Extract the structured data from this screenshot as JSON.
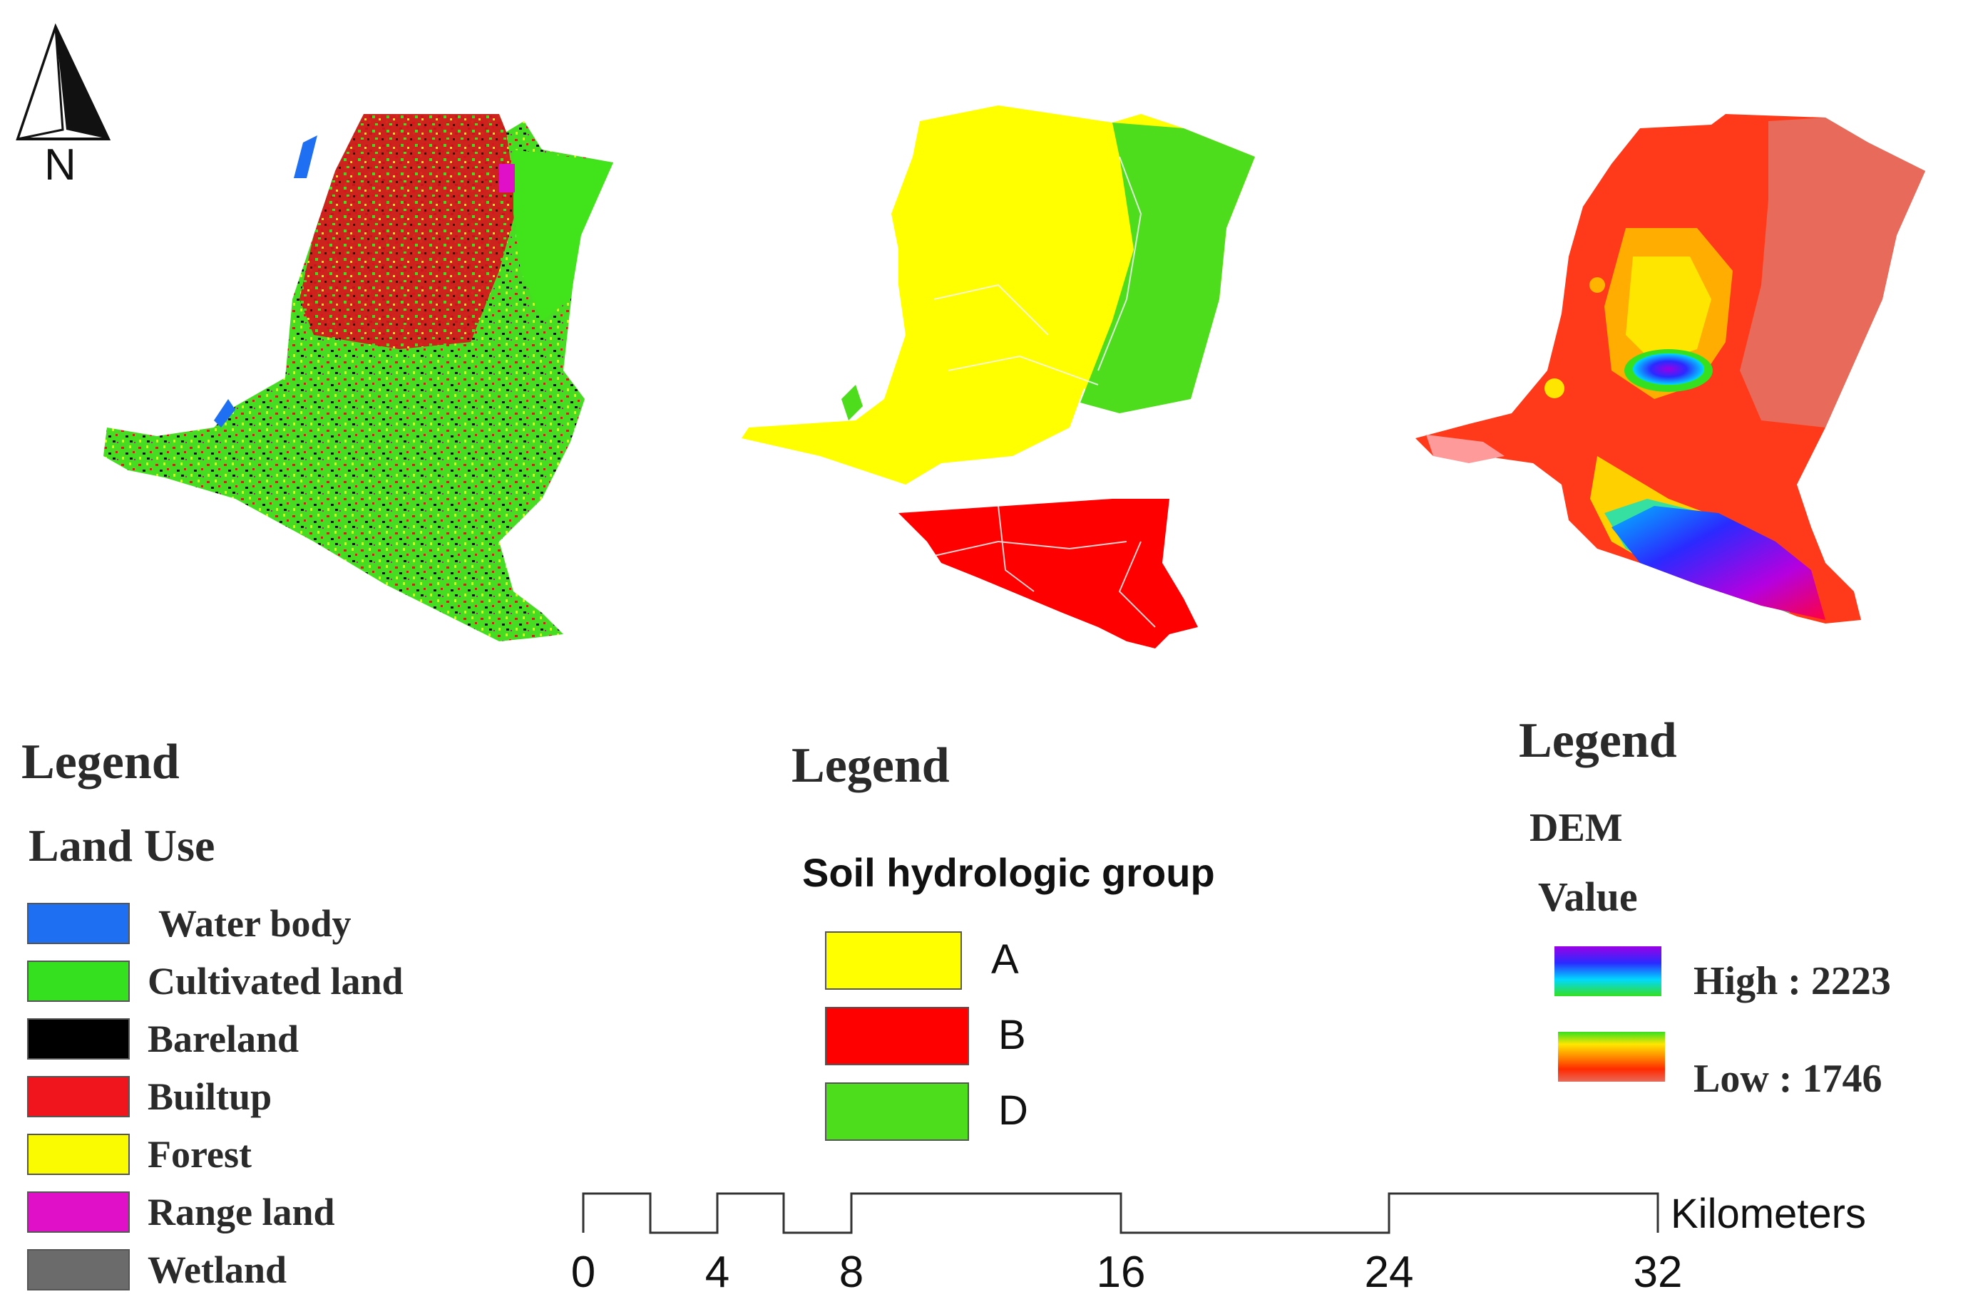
{
  "north_arrow": {
    "label": "N"
  },
  "land_use": {
    "legend_title": "Legend",
    "subtitle": "Land Use",
    "classes": [
      {
        "name": "Water body",
        "color": "#1f6ff2"
      },
      {
        "name": "Cultivated land",
        "color": "#35e01f"
      },
      {
        "name": "Bareland",
        "color": "#000000"
      },
      {
        "name": "Builtup",
        "color": "#f0141c"
      },
      {
        "name": "Forest",
        "color": "#fbfb00"
      },
      {
        "name": "Range land",
        "color": "#e010c8"
      },
      {
        "name": "Wetland",
        "color": "#6b6b6b"
      }
    ]
  },
  "soil": {
    "legend_title": "Legend",
    "subtitle": "Soil hydrologic group",
    "classes": [
      {
        "name": "A",
        "color": "#ffff00"
      },
      {
        "name": "B",
        "color": "#ff0000"
      },
      {
        "name": "D",
        "color": "#4ddd1c"
      }
    ]
  },
  "dem": {
    "legend_title": "Legend",
    "subtitle": "DEM",
    "value_label": "Value",
    "high_label": "High : 2223",
    "low_label": "Low : 1746",
    "high_value": 2223,
    "low_value": 1746,
    "ramp_colors": [
      "#9b00e6",
      "#2a2aff",
      "#00d8ff",
      "#35e01f",
      "#ffe600",
      "#ff8a00",
      "#ff2a00",
      "#e86a5a"
    ]
  },
  "scale_bar": {
    "unit": "Kilometers",
    "ticks": [
      "0",
      "4",
      "8",
      "16",
      "24",
      "32"
    ]
  }
}
